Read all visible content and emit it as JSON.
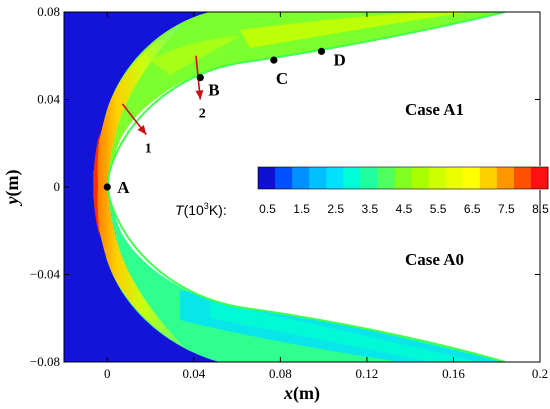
{
  "chart_data": {
    "type": "heatmap",
    "xlabel_var": "x",
    "xlabel_unit": "(m)",
    "ylabel_var": "y",
    "ylabel_unit": "(m)",
    "xlim": [
      -0.02,
      0.2
    ],
    "ylim": [
      -0.08,
      0.08
    ],
    "x_ticks": [
      "0",
      "0.04",
      "0.08",
      "0.12",
      "0.16",
      "0.2"
    ],
    "x_tick_values": [
      0,
      0.04,
      0.08,
      0.12,
      0.16,
      0.2
    ],
    "y_ticks": [
      "0.08",
      "0.04",
      "0",
      "−0.04",
      "−0.08"
    ],
    "y_tick_values": [
      0.08,
      0.04,
      0,
      -0.04,
      -0.08
    ],
    "cases": {
      "upper": "Case A1",
      "lower": "Case A0"
    },
    "colorbar": {
      "title_var": "T",
      "title_base": "(10",
      "title_exp": "3",
      "title_unit": "K):",
      "tick_labels": [
        "0.5",
        "1.5",
        "2.5",
        "3.5",
        "4.5",
        "5.5",
        "6.5",
        "7.5",
        "8.5"
      ],
      "levels": 17,
      "colors": [
        "#1010d0",
        "#0050ff",
        "#0090ff",
        "#00c0ff",
        "#00e0ff",
        "#00ffd8",
        "#20ffa0",
        "#50ff60",
        "#80ff20",
        "#a8ff00",
        "#d0ff00",
        "#ecff00",
        "#ffff00",
        "#ffd000",
        "#ff9800",
        "#ff5000",
        "#ff1010"
      ]
    },
    "points": [
      {
        "label": "A",
        "x": 0.0,
        "y": 0.0
      },
      {
        "label": "B",
        "x": 0.043,
        "y": 0.05
      },
      {
        "label": "C",
        "x": 0.077,
        "y": 0.058
      },
      {
        "label": "D",
        "x": 0.099,
        "y": 0.062
      }
    ],
    "arrows": [
      {
        "label": "1",
        "x0": 0.007,
        "y0": 0.038,
        "x1": 0.018,
        "y1": 0.024
      },
      {
        "label": "2",
        "x0": 0.041,
        "y0": 0.06,
        "x1": 0.043,
        "y1": 0.04
      }
    ]
  }
}
